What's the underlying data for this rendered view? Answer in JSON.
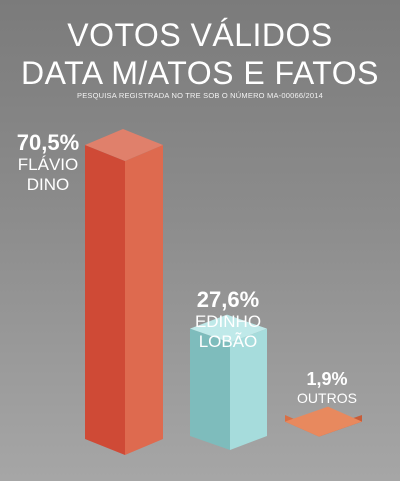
{
  "header": {
    "title_line1": "VOTOS VÁLIDOS",
    "title_line2": "DATA M/ATOS E FATOS",
    "subtitle": "PESQUISA REGISTRADA NO TRE SOB O NÚMERO MA-00066/2014"
  },
  "chart_data": {
    "type": "bar",
    "title": "VOTOS VÁLIDOS",
    "categories": [
      "FLÁVIO DINO",
      "EDINHO LOBÃO",
      "OUTROS"
    ],
    "values": [
      70.5,
      27.6,
      1.9
    ],
    "value_labels": [
      "70,5%",
      "27,6%",
      "1,9%"
    ],
    "name_lines": [
      [
        "FLÁVIO",
        "DINO"
      ],
      [
        "EDINHO",
        "LOBÃO"
      ],
      [
        "OUTROS"
      ]
    ],
    "ylim": [
      0,
      100
    ],
    "grid": false,
    "colors": [
      {
        "front": "#cf4a36",
        "side": "#de6a4f",
        "top": "#e0806b"
      },
      {
        "front": "#7ebcbc",
        "side": "#a6dcdc",
        "top": "#bfe9e9"
      },
      {
        "front": "#d86f45",
        "side": "#c85c38",
        "top": "#e8895e"
      }
    ]
  }
}
